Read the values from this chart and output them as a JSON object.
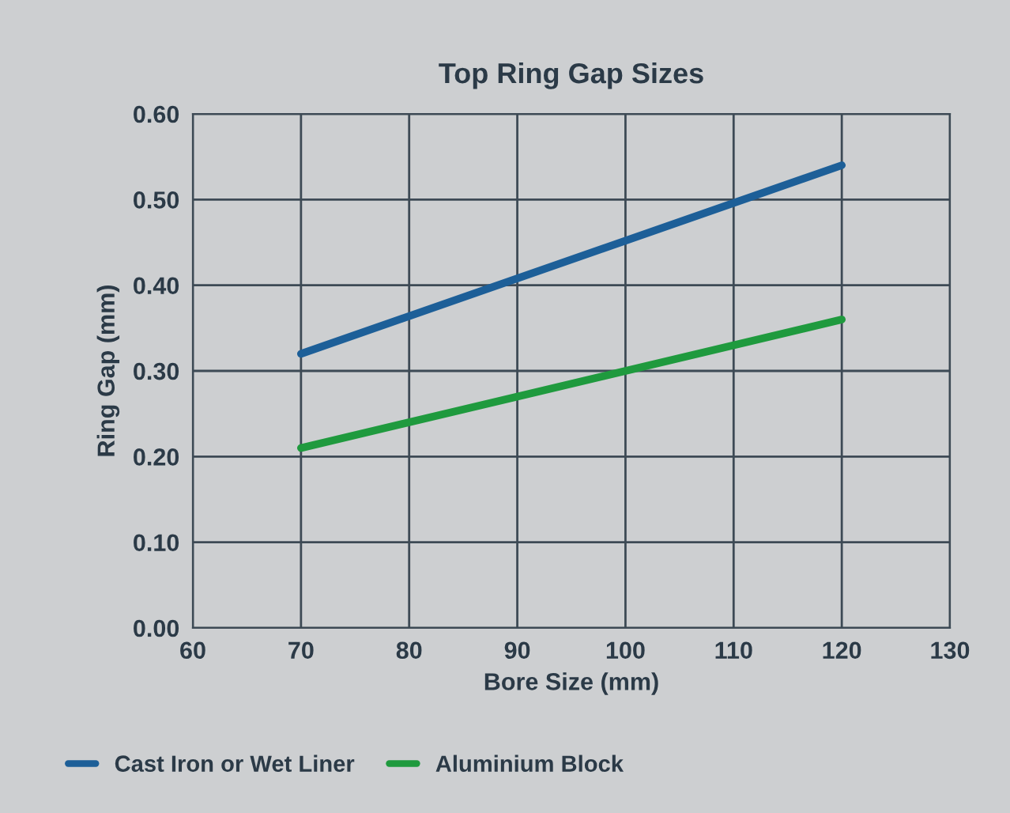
{
  "chart_data": {
    "type": "line",
    "title": "Top Ring Gap Sizes",
    "xlabel": "Bore Size (mm)",
    "ylabel": "Ring Gap (mm)",
    "x": [
      70,
      120
    ],
    "series": [
      {
        "name": "Cast Iron or Wet Liner",
        "color": "#1d5f98",
        "values": [
          0.32,
          0.54
        ]
      },
      {
        "name": "Aluminium Block",
        "color": "#1f9a3e",
        "values": [
          0.21,
          0.36
        ]
      }
    ],
    "xlim": [
      60,
      130
    ],
    "xticks": [
      60,
      70,
      80,
      90,
      100,
      110,
      120,
      130
    ],
    "ylim": [
      0,
      0.6
    ],
    "yticks": [
      {
        "value": 0,
        "label": "0.00"
      },
      {
        "value": 0.1,
        "label": "0.10"
      },
      {
        "value": 0.2,
        "label": "0.20"
      },
      {
        "value": 0.3,
        "label": "0.30"
      },
      {
        "value": 0.4,
        "label": "0.40"
      },
      {
        "value": 0.5,
        "label": "0.50"
      },
      {
        "value": 0.6,
        "label": "0.60"
      }
    ],
    "grid": true,
    "legend": "bottom left",
    "marker": "none",
    "line_style": "solid"
  }
}
